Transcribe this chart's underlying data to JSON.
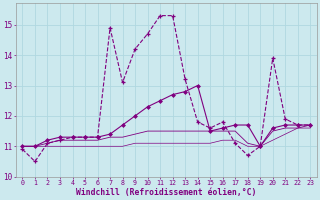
{
  "xlabel": "Windchill (Refroidissement éolien,°C)",
  "background_color": "#cce9ee",
  "line_color": "#800080",
  "hours": [
    0,
    1,
    2,
    3,
    4,
    5,
    6,
    7,
    8,
    9,
    10,
    11,
    12,
    13,
    14,
    15,
    16,
    17,
    18,
    19,
    20,
    21,
    22,
    23
  ],
  "series1": [
    10.9,
    10.5,
    11.1,
    11.2,
    11.3,
    11.3,
    11.3,
    14.9,
    13.1,
    14.2,
    14.7,
    15.3,
    15.3,
    13.2,
    11.8,
    11.6,
    11.8,
    11.1,
    10.7,
    11.0,
    13.9,
    11.9,
    11.7,
    11.7
  ],
  "series2": [
    11.0,
    11.0,
    11.2,
    11.3,
    11.3,
    11.3,
    11.3,
    11.4,
    11.7,
    12.0,
    12.3,
    12.5,
    12.7,
    12.8,
    13.0,
    11.5,
    11.6,
    11.7,
    11.7,
    11.0,
    11.6,
    11.7,
    11.7,
    11.7
  ],
  "series3": [
    11.0,
    11.0,
    11.1,
    11.2,
    11.2,
    11.2,
    11.2,
    11.3,
    11.3,
    11.4,
    11.5,
    11.5,
    11.5,
    11.5,
    11.5,
    11.5,
    11.5,
    11.5,
    11.1,
    11.0,
    11.5,
    11.6,
    11.6,
    11.7
  ],
  "series4": [
    11.0,
    11.0,
    11.0,
    11.0,
    11.0,
    11.0,
    11.0,
    11.0,
    11.0,
    11.1,
    11.1,
    11.1,
    11.1,
    11.1,
    11.1,
    11.1,
    11.2,
    11.2,
    11.0,
    11.0,
    11.2,
    11.4,
    11.6,
    11.6
  ],
  "ylim": [
    10.0,
    15.7
  ],
  "yticks": [
    10,
    11,
    12,
    13,
    14,
    15
  ],
  "xlim": [
    -0.5,
    23.5
  ]
}
